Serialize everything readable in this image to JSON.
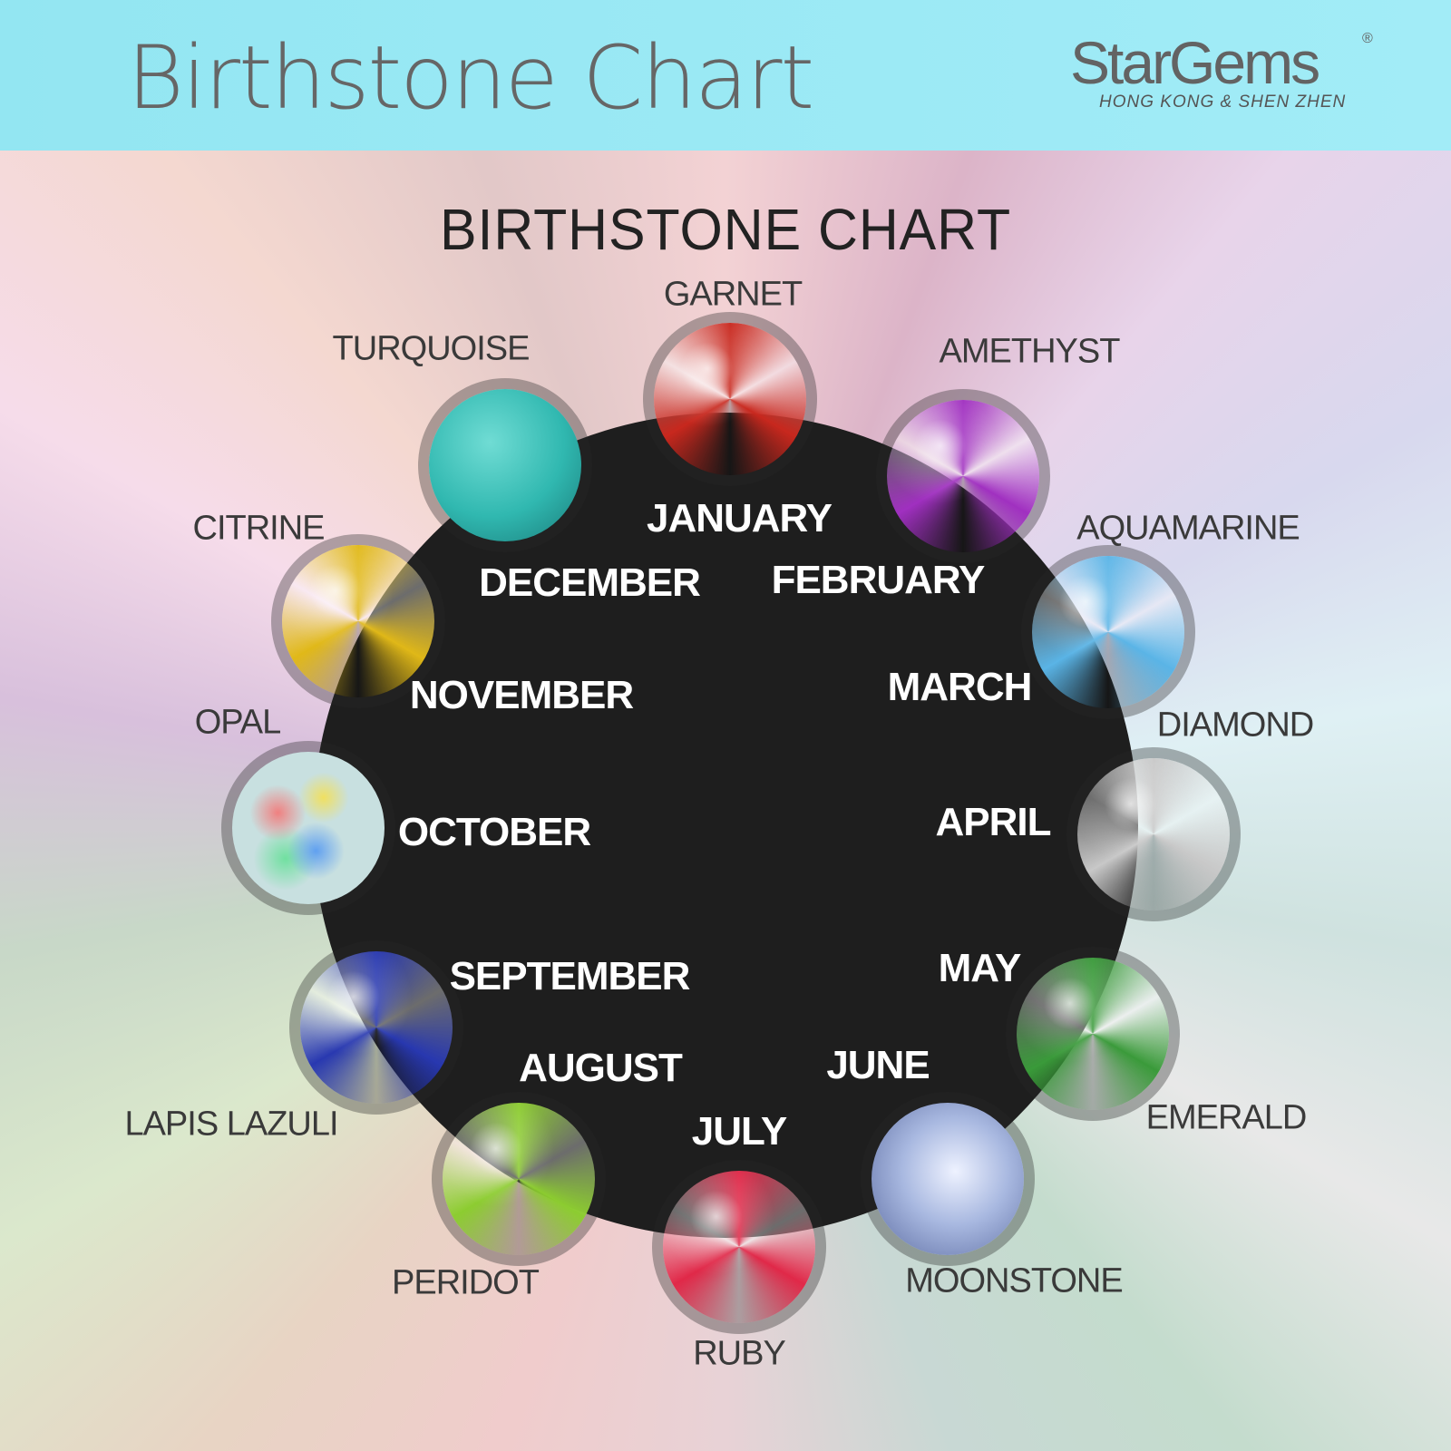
{
  "header": {
    "title": "Birthstone Chart",
    "logo": {
      "name": "StarGems",
      "registered": "®",
      "subtitle": "HONG KONG & SHEN ZHEN"
    }
  },
  "main_title": "BIRTHSTONE CHART",
  "items": [
    {
      "month": "JANUARY",
      "stone": "GARNET",
      "color": "#c8281e"
    },
    {
      "month": "FEBRUARY",
      "stone": "AMETHYST",
      "color": "#a030c0"
    },
    {
      "month": "MARCH",
      "stone": "AQUAMARINE",
      "color": "#5ab4e6"
    },
    {
      "month": "APRIL",
      "stone": "DIAMOND",
      "color": "#c8c8c8"
    },
    {
      "month": "MAY",
      "stone": "EMERALD",
      "color": "#3a9a3a"
    },
    {
      "month": "JUNE",
      "stone": "MOONSTONE",
      "color": "#a8b8e0"
    },
    {
      "month": "JULY",
      "stone": "RUBY",
      "color": "#e02848"
    },
    {
      "month": "AUGUST",
      "stone": "PERIDOT",
      "color": "#8ccc30"
    },
    {
      "month": "SEPTEMBER",
      "stone": "LAPIS LAZULI",
      "color": "#2838b0"
    },
    {
      "month": "OCTOBER",
      "stone": "OPAL",
      "color": "#b8d8c8"
    },
    {
      "month": "NOVEMBER",
      "stone": "CITRINE",
      "color": "#e0b818"
    },
    {
      "month": "DECEMBER",
      "stone": "TURQUOISE",
      "color": "#30b8b0"
    }
  ]
}
